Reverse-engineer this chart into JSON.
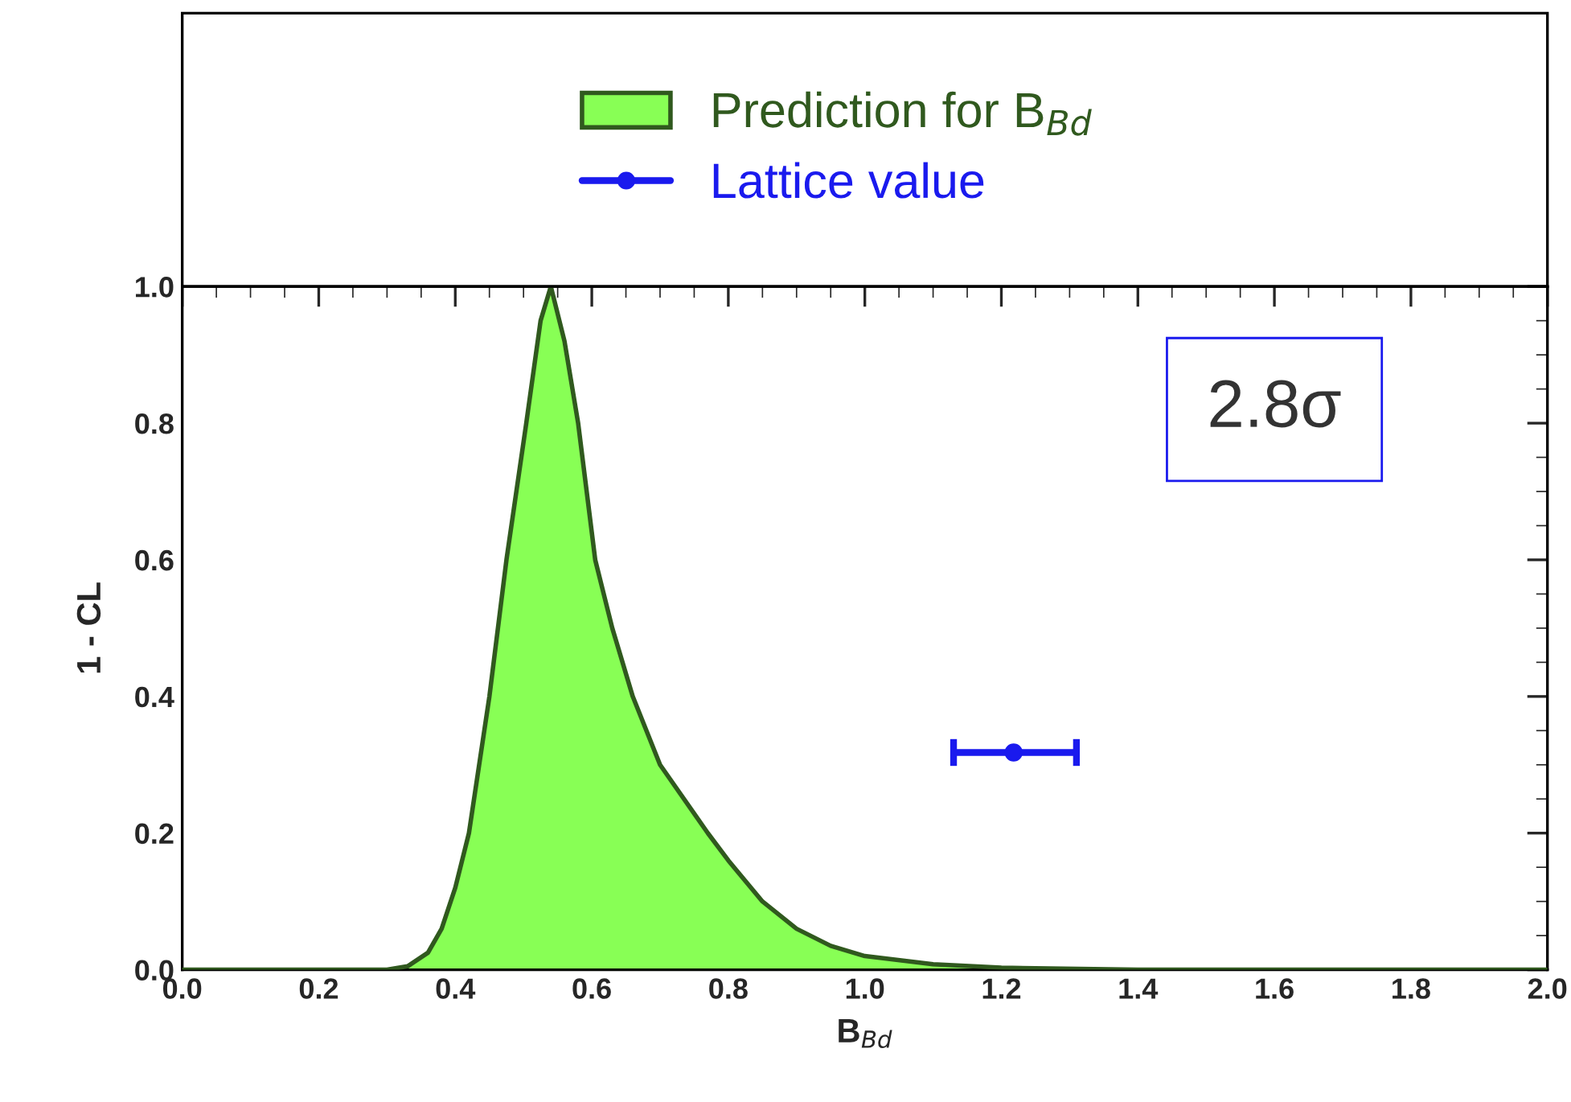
{
  "chart_data": {
    "type": "area",
    "xlabel": "B$_{Bd}$",
    "ylabel": "1 - CL",
    "legend": "top",
    "grid": false,
    "xlim": [
      0,
      2
    ],
    "ylim": [
      0,
      1
    ],
    "xticks": [
      {
        "value": 0,
        "label": "0.0"
      },
      {
        "value": 0.2,
        "label": "0.2"
      },
      {
        "value": 0.4,
        "label": "0.4"
      },
      {
        "value": 0.6,
        "label": "0.6"
      },
      {
        "value": 0.8,
        "label": "0.8"
      },
      {
        "value": 1.0,
        "label": "1.0"
      },
      {
        "value": 1.2,
        "label": "1.2"
      },
      {
        "value": 1.4,
        "label": "1.4"
      },
      {
        "value": 1.6,
        "label": "1.6"
      },
      {
        "value": 1.8,
        "label": "1.8"
      },
      {
        "value": 2.0,
        "label": "2.0"
      }
    ],
    "yticks": [
      {
        "value": 0,
        "label": "0.0"
      },
      {
        "value": 0.2,
        "label": "0.2"
      },
      {
        "value": 0.4,
        "label": "0.4"
      },
      {
        "value": 0.6,
        "label": "0.6"
      },
      {
        "value": 0.8,
        "label": "0.8"
      },
      {
        "value": 1.0,
        "label": "1.0"
      }
    ],
    "annotations": [
      "2.8σ"
    ],
    "series": [
      {
        "name": "Prediction for B$_{Bd}$",
        "color": "#88ff55",
        "x": [
          0,
          0.3,
          0.33,
          0.36,
          0.38,
          0.4,
          0.42,
          0.45,
          0.475,
          0.504,
          0.525,
          0.54,
          0.56,
          0.58,
          0.605,
          0.63,
          0.66,
          0.7,
          0.77,
          0.8,
          0.85,
          0.9,
          0.95,
          1.0,
          1.1,
          1.2,
          1.4,
          2.0
        ],
        "values": [
          0,
          0,
          0.005,
          0.025,
          0.06,
          0.12,
          0.2,
          0.4,
          0.6,
          0.8,
          0.95,
          1.0,
          0.92,
          0.8,
          0.6,
          0.5,
          0.4,
          0.3,
          0.2,
          0.16,
          0.1,
          0.06,
          0.035,
          0.02,
          0.008,
          0.003,
          0,
          0
        ]
      },
      {
        "name": "Lattice value",
        "type": "scatter",
        "color": "#1a1aee",
        "marker": "circle",
        "x": [
          1.218
        ],
        "values": [
          0.318
        ],
        "xerrors": [
          [
            1.13,
            1.31
          ]
        ]
      }
    ]
  }
}
